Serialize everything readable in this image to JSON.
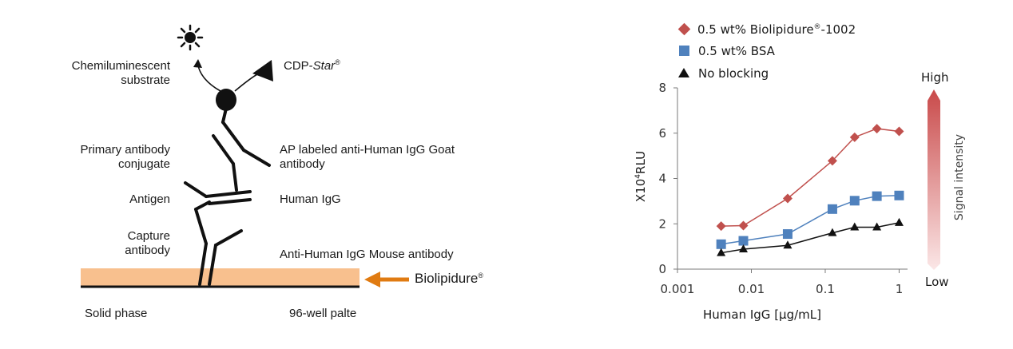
{
  "schematic": {
    "left_labels": {
      "substrate_line1": "Chemiluminescent",
      "substrate_line2": "substrate",
      "primary_line1": "Primary antibody",
      "primary_line2": "conjugate",
      "antigen": "Antigen",
      "capture_line1": "Capture",
      "capture_line2": "antibody"
    },
    "right_labels": {
      "cdp_prefix": "CDP-",
      "cdp_italic": "Star",
      "cdp_mark": "®",
      "ap_line1": "AP labeled anti-Human IgG Goat",
      "ap_line2": "antibody",
      "human_igg": "Human IgG",
      "anti_human": "Anti-Human IgG Mouse antibody"
    },
    "biolipidure_name": "Biolipidure",
    "biolipidure_mark": "®",
    "solid_phase": "Solid phase",
    "well_plate": "96-well palte",
    "colors": {
      "coating": "#f8c08e",
      "arrow": "#e07b12",
      "ink": "#111111"
    }
  },
  "chart_data": {
    "type": "line",
    "xlabel": "Human IgG [μg/mL]",
    "ylabel_prefix": "X10",
    "ylabel_sup": "4",
    "ylabel_suffix": "RLU",
    "xscale": "log",
    "xlim": [
      0.001,
      1.3
    ],
    "ylim": [
      0,
      8
    ],
    "x_ticks": [
      0.001,
      0.01,
      0.1,
      1
    ],
    "x_tick_labels": [
      "0.001",
      "0.01",
      "0.1",
      "1"
    ],
    "y_ticks": [
      0,
      2,
      4,
      6,
      8
    ],
    "y_tick_labels": [
      "0",
      "2",
      "4",
      "6",
      "8"
    ],
    "grid": false,
    "legend_position": "top-left",
    "x": [
      0.0039,
      0.0078,
      0.031,
      0.125,
      0.25,
      0.5,
      1
    ],
    "series": [
      {
        "name": "0.5 wt% Biolipidure",
        "name_sup": "®",
        "name_suffix": "-1002",
        "marker": "diamond",
        "color": "#c0504d",
        "values": [
          1.9,
          1.92,
          3.12,
          4.78,
          5.82,
          6.2,
          6.08
        ]
      },
      {
        "name": "0.5 wt% BSA",
        "marker": "square",
        "color": "#4f81bd",
        "values": [
          1.1,
          1.25,
          1.55,
          2.65,
          3.02,
          3.22,
          3.25
        ]
      },
      {
        "name": "No blocking",
        "marker": "triangle",
        "color": "#111111",
        "values": [
          0.72,
          0.88,
          1.05,
          1.6,
          1.85,
          1.85,
          2.05
        ]
      }
    ],
    "intensity_bar": {
      "top_label": "High",
      "bottom_label": "Low",
      "title": "Signal intensity",
      "color_high": "#c94a4a",
      "color_low": "#fbe7e7"
    }
  }
}
